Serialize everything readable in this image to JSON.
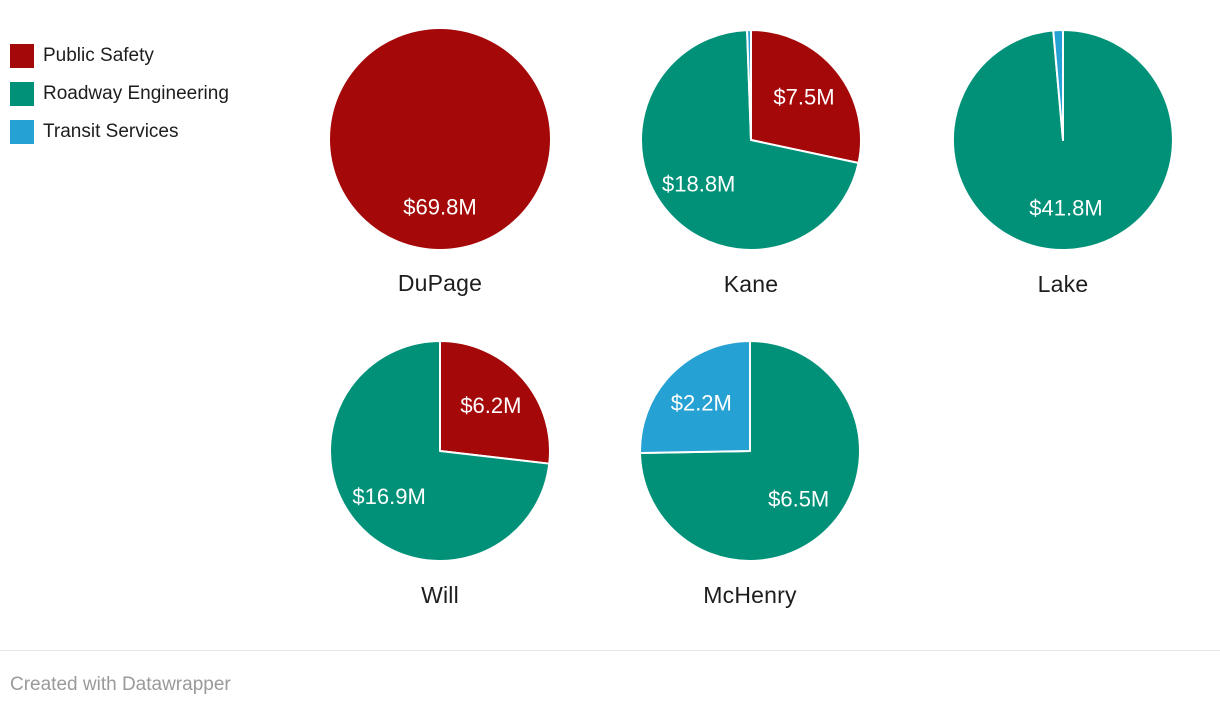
{
  "legend": {
    "items": [
      {
        "label": "Public Safety",
        "color": "#a40808"
      },
      {
        "label": "Roadway Engineering",
        "color": "#009178"
      },
      {
        "label": "Transit Services",
        "color": "#25a1d3"
      }
    ]
  },
  "footer": {
    "attribution": "Created with Datawrapper"
  },
  "chart_data": {
    "type": "pie",
    "layout": "small-multiples",
    "value_unit": "USD millions",
    "legend_position": "top-left",
    "categories": [
      "Public Safety",
      "Roadway Engineering",
      "Transit Services"
    ],
    "colors": {
      "Public Safety": "#a40808",
      "Roadway Engineering": "#009178",
      "Transit Services": "#25a1d3"
    },
    "label_color": "#ffffff",
    "slice_order": "clockwise-from-top",
    "pies": [
      {
        "name": "DuPage",
        "slices": [
          {
            "category": "Public Safety",
            "value": 69.8,
            "label": "$69.8M"
          }
        ]
      },
      {
        "name": "Kane",
        "slices": [
          {
            "category": "Public Safety",
            "value": 7.5,
            "label": "$7.5M"
          },
          {
            "category": "Roadway Engineering",
            "value": 18.8,
            "label": "$18.8M"
          },
          {
            "category": "Transit Services",
            "value": 0.15,
            "label": "",
            "estimated": true
          }
        ]
      },
      {
        "name": "Lake",
        "slices": [
          {
            "category": "Roadway Engineering",
            "value": 41.8,
            "label": "$41.8M"
          },
          {
            "category": "Transit Services",
            "value": 0.6,
            "label": "",
            "estimated": true
          }
        ]
      },
      {
        "name": "Will",
        "slices": [
          {
            "category": "Public Safety",
            "value": 6.2,
            "label": "$6.2M"
          },
          {
            "category": "Roadway Engineering",
            "value": 16.9,
            "label": "$16.9M"
          }
        ]
      },
      {
        "name": "McHenry",
        "slices": [
          {
            "category": "Roadway Engineering",
            "value": 6.5,
            "label": "$6.5M"
          },
          {
            "category": "Transit Services",
            "value": 2.2,
            "label": "$2.2M"
          }
        ]
      }
    ]
  }
}
